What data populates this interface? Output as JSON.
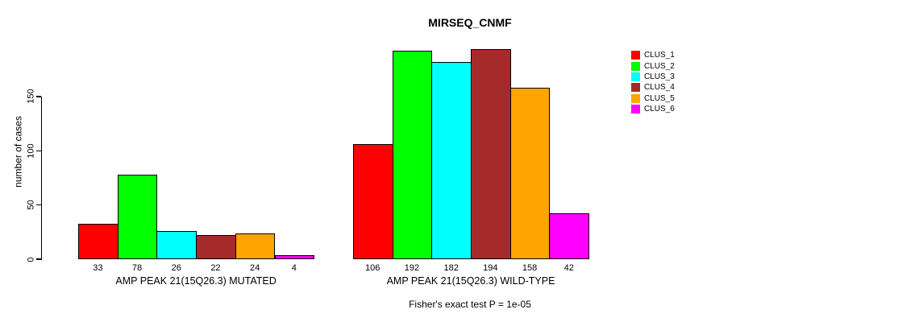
{
  "chart_data": {
    "type": "bar",
    "title": "MIRSEQ_CNMF",
    "ylabel": "number of cases",
    "yticks": [
      0,
      50,
      100,
      150
    ],
    "ylim": [
      0,
      198
    ],
    "grid": false,
    "legend_position": "top-right",
    "categories": [
      "CLUS_1",
      "CLUS_2",
      "CLUS_3",
      "CLUS_4",
      "CLUS_5",
      "CLUS_6"
    ],
    "series_colors": [
      "#FF0000",
      "#00FF00",
      "#00FFFF",
      "#A52A2A",
      "#FFA500",
      "#FF00FF"
    ],
    "groups": [
      {
        "label": "AMP PEAK 21(15Q26.3) MUTATED",
        "values": [
          33,
          78,
          26,
          22,
          24,
          4
        ]
      },
      {
        "label": "AMP PEAK 21(15Q26.3) WILD-TYPE",
        "values": [
          106,
          192,
          182,
          194,
          158,
          42
        ]
      }
    ],
    "legend": [
      {
        "label": "CLUS_1",
        "color": "#FF0000"
      },
      {
        "label": "CLUS_2",
        "color": "#00FF00"
      },
      {
        "label": "CLUS_3",
        "color": "#00FFFF"
      },
      {
        "label": "CLUS_4",
        "color": "#A52A2A"
      },
      {
        "label": "CLUS_5",
        "color": "#FFA500"
      },
      {
        "label": "CLUS_6",
        "color": "#FF00FF"
      }
    ],
    "footnote": "Fisher's exact test P = 1e-05"
  }
}
